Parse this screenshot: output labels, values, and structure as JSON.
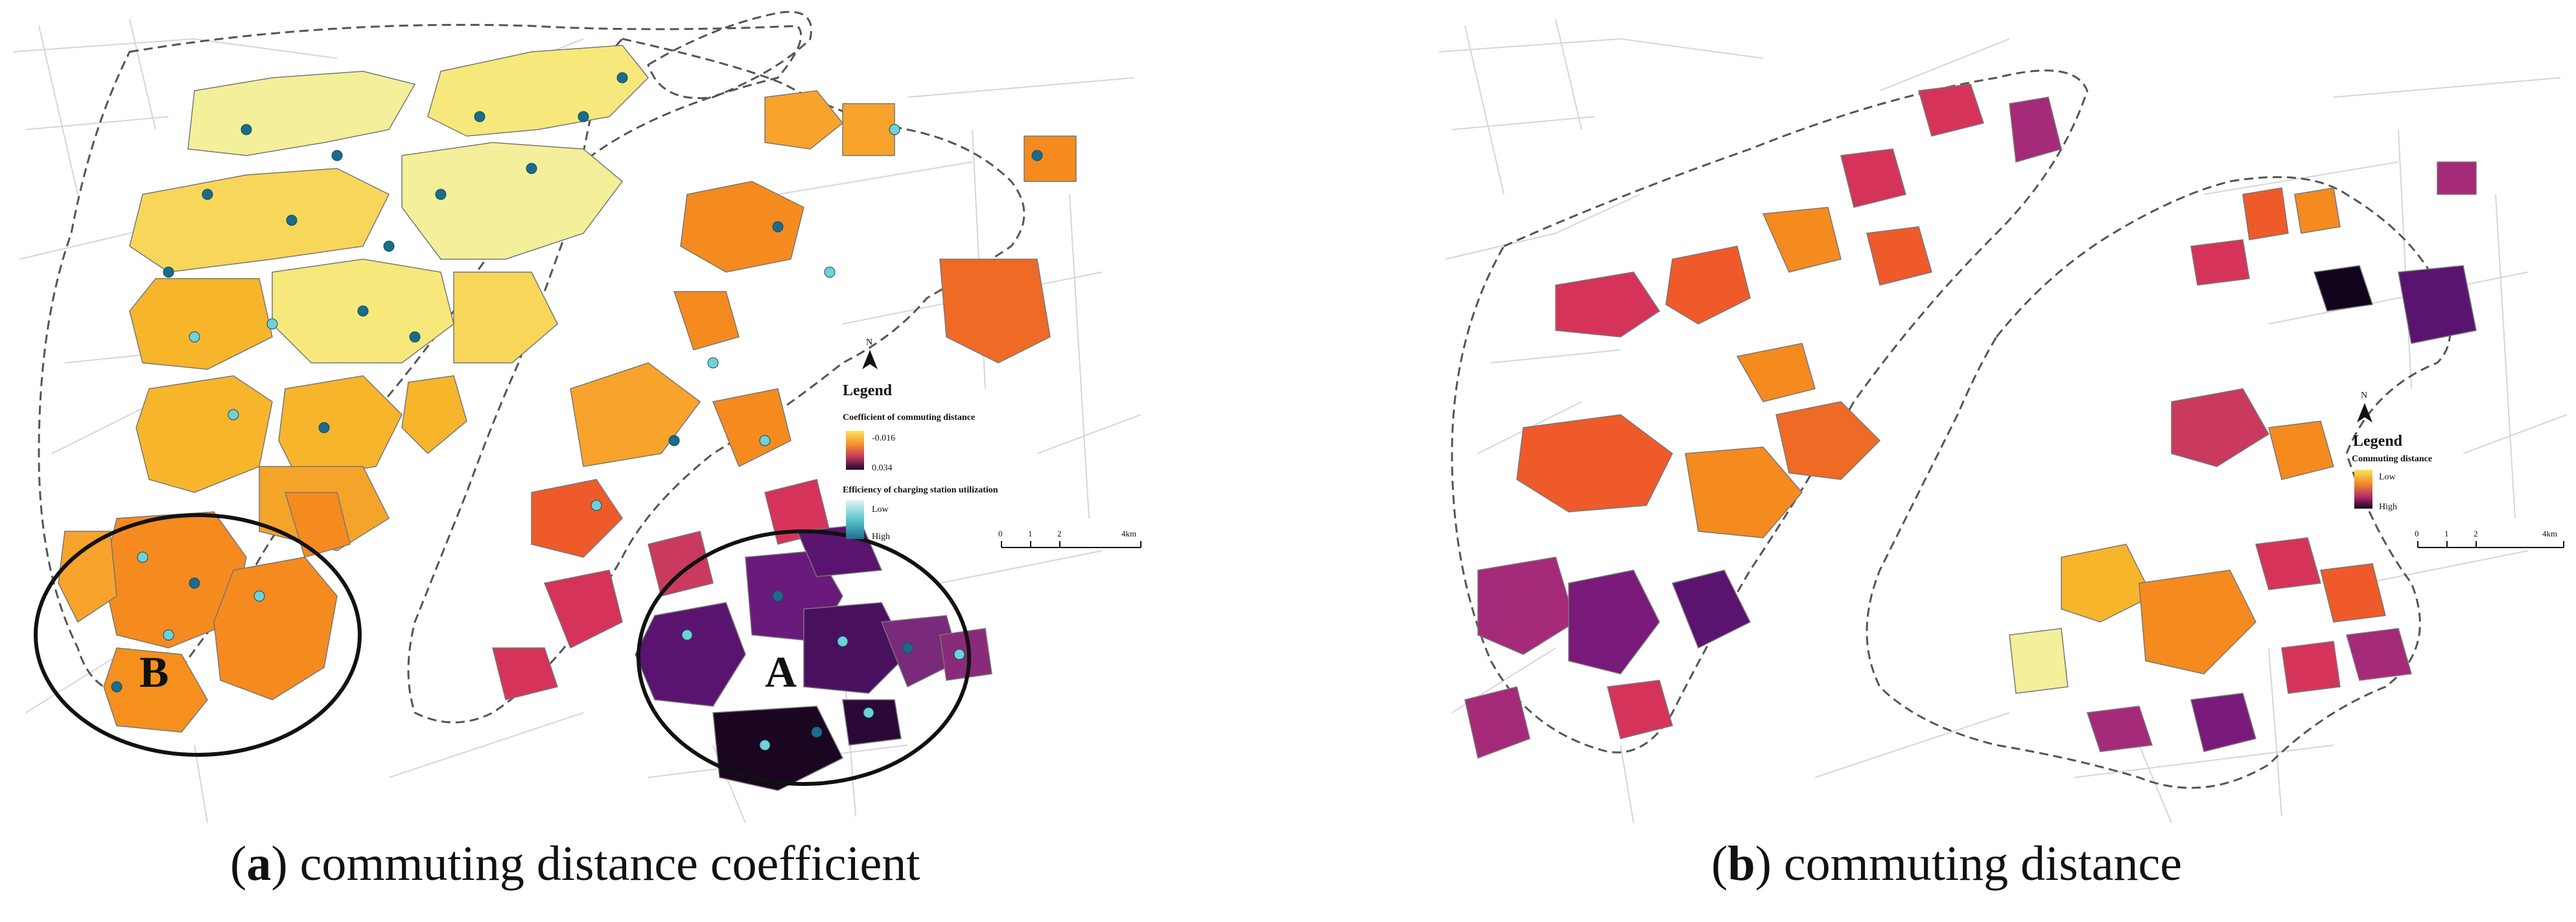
{
  "panel_a": {
    "caption_letter": "a",
    "caption_text": "commuting distance coefficient",
    "legend": {
      "title": "Legend",
      "north": "N",
      "coef_title": "Coefficient of commuting distance",
      "coef_max": "-0.016",
      "coef_min": "0.034",
      "eff_title": "Efficiency of charging station utilization",
      "eff_low": "Low",
      "eff_high": "High"
    },
    "scale": {
      "t0": "0",
      "t1": "1",
      "t2": "2",
      "t3": "4km"
    },
    "circle_labels": {
      "a": "A",
      "b": "B"
    }
  },
  "panel_b": {
    "caption_letter": "b",
    "caption_text": "commuting distance",
    "legend": {
      "title": "Legend",
      "north": "N",
      "dist_title": "Commuting distance",
      "low": "Low",
      "high": "High"
    },
    "scale": {
      "t0": "0",
      "t1": "1",
      "t2": "2",
      "t3": "4km"
    }
  },
  "colors": {
    "yellow": "#f6e87a",
    "light_yellow": "#f3ef9a",
    "amber": "#f7b52c",
    "orange": "#f58a1f",
    "red_orange": "#ef5a2a",
    "crimson": "#d6335a",
    "magenta": "#a52a7a",
    "purple": "#5a1470",
    "dark": "#1a0620",
    "station_dark": "#1b6c8a",
    "station_light": "#6fd2d6",
    "river_outline": "#555555"
  }
}
